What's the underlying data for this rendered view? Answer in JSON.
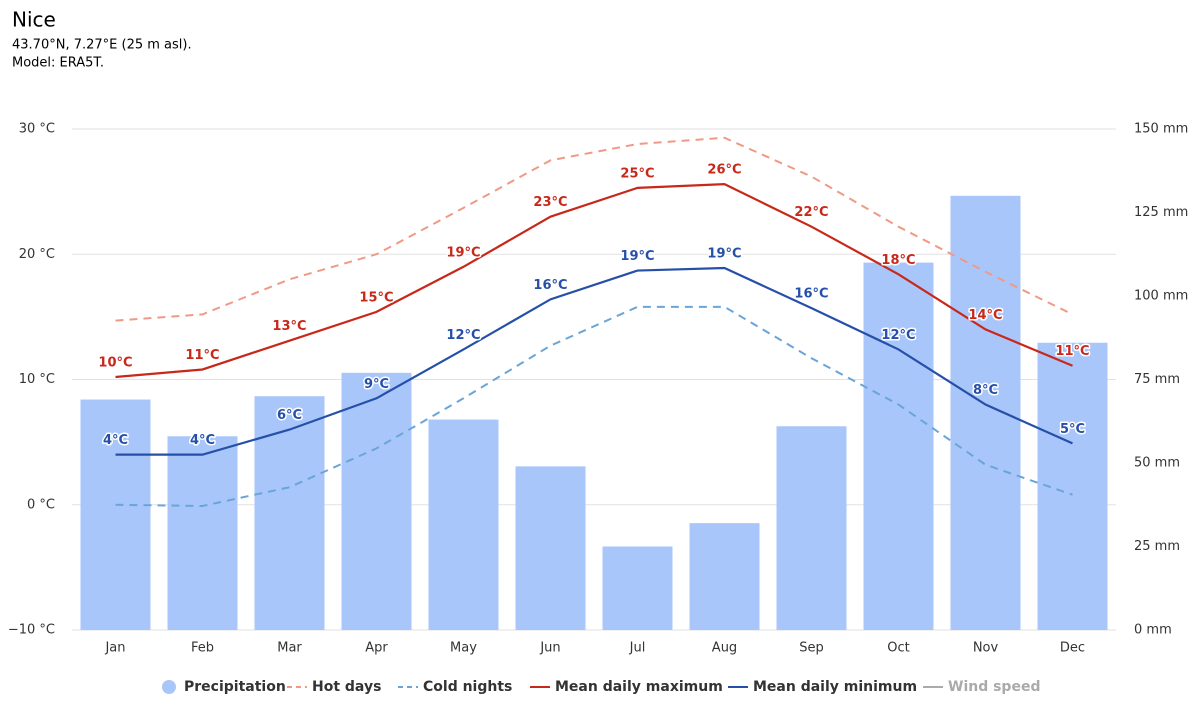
{
  "chart_data": {
    "type": "bar",
    "title": "Nice",
    "subtitle": [
      "43.70°N, 7.27°E (25 m asl).",
      "Model: ERA5T."
    ],
    "categories": [
      "Jan",
      "Feb",
      "Mar",
      "Apr",
      "May",
      "Jun",
      "Jul",
      "Aug",
      "Sep",
      "Oct",
      "Nov",
      "Dec"
    ],
    "ylim": [
      -10,
      30
    ],
    "yticks": [
      {
        "value": -10,
        "label": "−10 °C"
      },
      {
        "value": 0,
        "label": "0 °C"
      },
      {
        "value": 10,
        "label": "10 °C"
      },
      {
        "value": 20,
        "label": "20 °C"
      },
      {
        "value": 30,
        "label": "30 °C"
      }
    ],
    "y2lim": [
      0,
      150
    ],
    "y2ticks": [
      {
        "value": 0,
        "label": "0 mm"
      },
      {
        "value": 25,
        "label": "25 mm"
      },
      {
        "value": 50,
        "label": "50 mm"
      },
      {
        "value": 75,
        "label": "75 mm"
      },
      {
        "value": 100,
        "label": "100 mm"
      },
      {
        "value": 125,
        "label": "125 mm"
      },
      {
        "value": 150,
        "label": "150 mm"
      }
    ],
    "grid": true,
    "legend": "bottom",
    "series": [
      {
        "name": "Precipitation",
        "type": "bar",
        "axis": "y2",
        "color": "#a9c6fb",
        "values": [
          69,
          58,
          70,
          77,
          63,
          49,
          25,
          32,
          61,
          110,
          130,
          86
        ]
      },
      {
        "name": "Hot days",
        "type": "line",
        "dash": true,
        "color": "#ef9a86",
        "values": [
          14.7,
          15.2,
          18.0,
          20.0,
          23.7,
          27.5,
          28.8,
          29.3,
          26.2,
          22.2,
          18.6,
          15.2
        ]
      },
      {
        "name": "Cold nights",
        "type": "line",
        "dash": true,
        "color": "#6aa5d8",
        "values": [
          0,
          -0.1,
          1.4,
          4.5,
          8.5,
          12.7,
          15.8,
          15.8,
          11.7,
          8.0,
          3.2,
          0.8
        ]
      },
      {
        "name": "Mean daily maximum",
        "type": "line",
        "color": "#c8281a",
        "values": [
          10.2,
          10.8,
          13.1,
          15.4,
          19.0,
          23.0,
          25.3,
          25.6,
          22.2,
          18.4,
          14.0,
          11.1
        ],
        "value_labels": [
          "10°C",
          "11°C",
          "13°C",
          "15°C",
          "19°C",
          "23°C",
          "25°C",
          "26°C",
          "22°C",
          "18°C",
          "14°C",
          "11°C"
        ]
      },
      {
        "name": "Mean daily minimum",
        "type": "line",
        "color": "#2650a8",
        "values": [
          4.0,
          4.0,
          6.0,
          8.5,
          12.4,
          16.4,
          18.7,
          18.9,
          15.7,
          12.4,
          8.0,
          4.9
        ],
        "value_labels": [
          "4°C",
          "4°C",
          "6°C",
          "9°C",
          "12°C",
          "16°C",
          "19°C",
          "19°C",
          "16°C",
          "12°C",
          "8°C",
          "5°C"
        ]
      },
      {
        "name": "Wind speed",
        "type": "line",
        "hidden": true,
        "color": "#aaaaaa",
        "values": [
          null,
          null,
          null,
          null,
          null,
          null,
          null,
          null,
          null,
          null,
          null,
          null
        ]
      }
    ]
  }
}
